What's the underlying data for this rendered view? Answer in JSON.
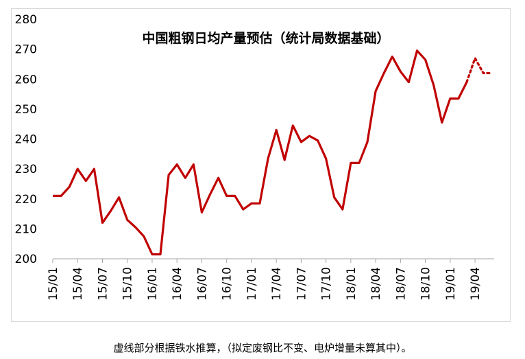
{
  "chart_data": {
    "type": "line",
    "title": "中国粗钢日均产量预估（统计局数据基础）",
    "ylim": [
      200,
      280
    ],
    "yticks": [
      200,
      210,
      220,
      230,
      240,
      250,
      260,
      270,
      280
    ],
    "x": [
      "15/01",
      "15/02",
      "15/03",
      "15/04",
      "15/05",
      "15/06",
      "15/07",
      "15/08",
      "15/09",
      "15/10",
      "15/11",
      "15/12",
      "16/01",
      "16/02",
      "16/03",
      "16/04",
      "16/05",
      "16/06",
      "16/07",
      "16/08",
      "16/09",
      "16/10",
      "16/11",
      "16/12",
      "17/01",
      "17/02",
      "17/03",
      "17/04",
      "17/05",
      "17/06",
      "17/07",
      "17/08",
      "17/09",
      "17/10",
      "17/11",
      "17/12",
      "18/01",
      "18/02",
      "18/03",
      "18/04",
      "18/05",
      "18/06",
      "18/07",
      "18/08",
      "18/09",
      "18/10",
      "18/11",
      "18/12",
      "19/01",
      "19/02",
      "19/03",
      "19/04",
      "19/05",
      "19/06"
    ],
    "xtick_labels": [
      "15/01",
      "15/04",
      "15/07",
      "15/10",
      "16/01",
      "16/04",
      "16/07",
      "16/10",
      "17/01",
      "17/04",
      "17/07",
      "17/10",
      "18/01",
      "18/04",
      "18/07",
      "18/10",
      "19/01",
      "19/04"
    ],
    "series": [
      {
        "style": "solid",
        "color": "#c00000",
        "values": [
          221,
          221,
          224,
          230,
          226,
          230,
          212,
          216,
          220.5,
          213,
          210.5,
          207.5,
          201.5,
          201.5,
          228,
          231.5,
          227,
          231.5,
          215.5,
          221.5,
          227,
          221,
          221,
          216.5,
          218.5,
          218.5,
          233.5,
          243,
          233,
          244.5,
          239,
          241,
          239.5,
          233.5,
          220.5,
          216.5,
          232,
          232,
          239,
          256,
          262,
          267.5,
          262.5,
          259,
          269.5,
          266.5,
          258,
          245.5,
          253.5,
          253.5,
          259,
          null,
          null,
          null
        ]
      },
      {
        "style": "dotted",
        "color": "#c00000",
        "values": [
          null,
          null,
          null,
          null,
          null,
          null,
          null,
          null,
          null,
          null,
          null,
          null,
          null,
          null,
          null,
          null,
          null,
          null,
          null,
          null,
          null,
          null,
          null,
          null,
          null,
          null,
          null,
          null,
          null,
          null,
          null,
          null,
          null,
          null,
          null,
          null,
          null,
          null,
          null,
          null,
          null,
          null,
          null,
          null,
          null,
          null,
          null,
          null,
          null,
          null,
          259,
          267,
          262,
          262
        ]
      }
    ]
  },
  "caption": "虚线部分根据铁水推算，（拟定废钢比不变、电炉增量未算其中）。"
}
